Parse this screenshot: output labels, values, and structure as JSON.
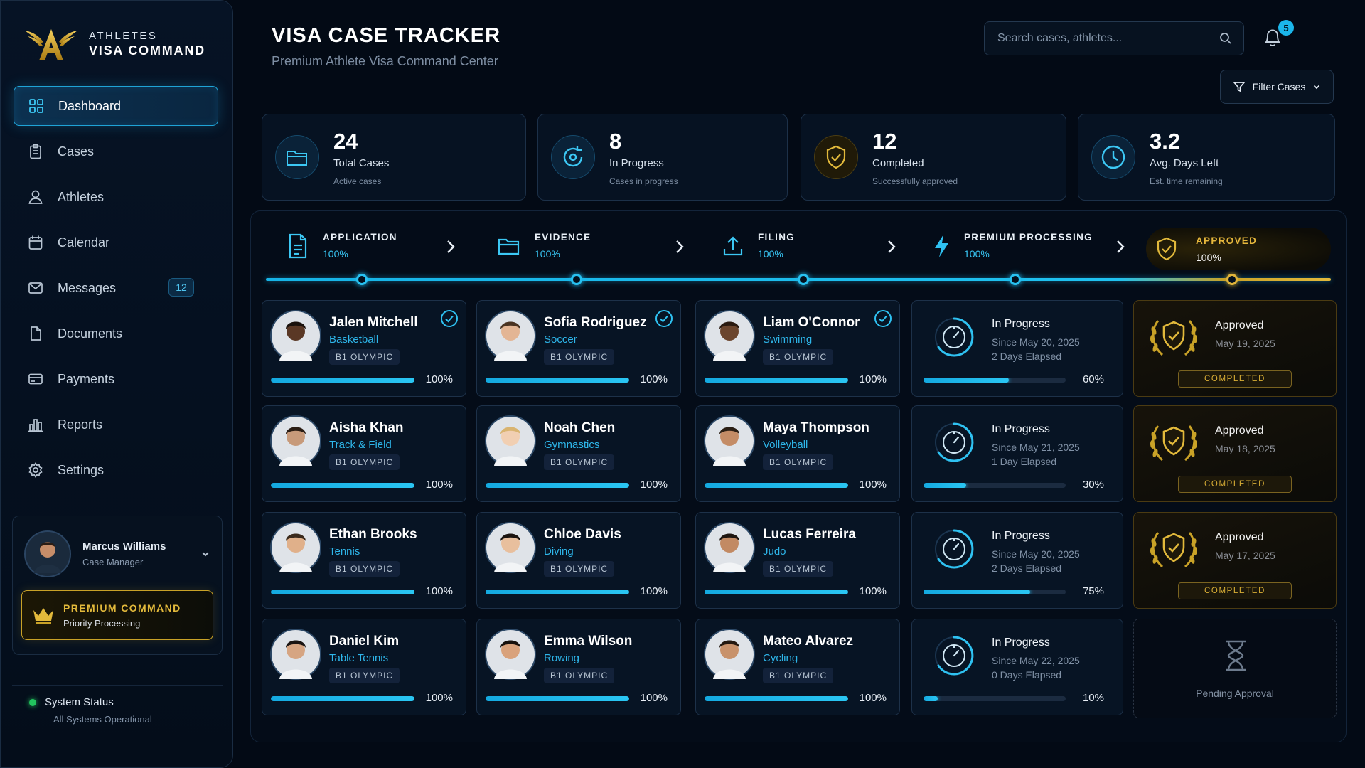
{
  "brand": {
    "line1": "ATHLETES",
    "line2": "VISA COMMAND"
  },
  "nav": [
    {
      "label": "Dashboard",
      "icon": "grid-icon",
      "active": true
    },
    {
      "label": "Cases",
      "icon": "clipboard-icon"
    },
    {
      "label": "Athletes",
      "icon": "user-icon"
    },
    {
      "label": "Calendar",
      "icon": "calendar-icon"
    },
    {
      "label": "Messages",
      "icon": "mail-icon",
      "badge": "12"
    },
    {
      "label": "Documents",
      "icon": "document-icon"
    },
    {
      "label": "Payments",
      "icon": "card-icon"
    },
    {
      "label": "Reports",
      "icon": "bar-chart-icon"
    },
    {
      "label": "Settings",
      "icon": "gear-icon"
    }
  ],
  "user": {
    "name": "Marcus Williams",
    "role": "Case Manager"
  },
  "premium": {
    "title": "PREMIUM COMMAND",
    "subtitle": "Priority Processing"
  },
  "system": {
    "title": "System Status",
    "subtitle": "All Systems Operational"
  },
  "header": {
    "title": "VISA CASE TRACKER",
    "subtitle": "Premium Athlete Visa Command Center",
    "search_placeholder": "Search cases, athletes...",
    "notifications": "5",
    "filter_label": "Filter Cases"
  },
  "stats": [
    {
      "value": "24",
      "label": "Total Cases",
      "sub": "Active cases",
      "icon": "folder-icon"
    },
    {
      "value": "8",
      "label": "In Progress",
      "sub": "Cases in progress",
      "icon": "refresh-icon"
    },
    {
      "value": "12",
      "label": "Completed",
      "sub": "Successfully approved",
      "icon": "shield-check-icon"
    },
    {
      "value": "3.2",
      "label": "Avg. Days Left",
      "sub": "Est. time remaining",
      "icon": "clock-icon"
    }
  ],
  "stages": [
    {
      "name": "APPLICATION",
      "pct": "100%",
      "icon": "document-icon"
    },
    {
      "name": "EVIDENCE",
      "pct": "100%",
      "icon": "folder-icon"
    },
    {
      "name": "FILING",
      "pct": "100%",
      "icon": "upload-icon"
    },
    {
      "name": "PREMIUM PROCESSING",
      "pct": "100%",
      "icon": "bolt-icon"
    },
    {
      "name": "APPROVED",
      "pct": "100%",
      "icon": "shield-check-icon"
    }
  ],
  "columns": [
    [
      {
        "name": "Jalen Mitchell",
        "sport": "Basketball",
        "tag": "B1 OLYMPIC",
        "progress": 100,
        "pct": "100%",
        "checked": true
      },
      {
        "name": "Aisha Khan",
        "sport": "Track & Field",
        "tag": "B1 OLYMPIC",
        "progress": 100,
        "pct": "100%"
      },
      {
        "name": "Ethan Brooks",
        "sport": "Tennis",
        "tag": "B1 OLYMPIC",
        "progress": 100,
        "pct": "100%"
      },
      {
        "name": "Daniel Kim",
        "sport": "Table Tennis",
        "tag": "B1 OLYMPIC",
        "progress": 100,
        "pct": "100%"
      }
    ],
    [
      {
        "name": "Sofia Rodriguez",
        "sport": "Soccer",
        "tag": "B1 OLYMPIC",
        "progress": 100,
        "pct": "100%",
        "checked": true
      },
      {
        "name": "Noah Chen",
        "sport": "Gymnastics",
        "tag": "B1 OLYMPIC",
        "progress": 100,
        "pct": "100%"
      },
      {
        "name": "Chloe Davis",
        "sport": "Diving",
        "tag": "B1 OLYMPIC",
        "progress": 100,
        "pct": "100%"
      },
      {
        "name": "Emma Wilson",
        "sport": "Rowing",
        "tag": "B1 OLYMPIC",
        "progress": 100,
        "pct": "100%"
      }
    ],
    [
      {
        "name": "Liam O'Connor",
        "sport": "Swimming",
        "tag": "B1 OLYMPIC",
        "progress": 100,
        "pct": "100%",
        "checked": true
      },
      {
        "name": "Maya Thompson",
        "sport": "Volleyball",
        "tag": "B1 OLYMPIC",
        "progress": 100,
        "pct": "100%"
      },
      {
        "name": "Lucas Ferreira",
        "sport": "Judo",
        "tag": "B1 OLYMPIC",
        "progress": 100,
        "pct": "100%"
      },
      {
        "name": "Mateo Alvarez",
        "sport": "Cycling",
        "tag": "B1 OLYMPIC",
        "progress": 100,
        "pct": "100%"
      }
    ]
  ],
  "in_progress": [
    {
      "title": "In Progress",
      "since": "Since May 20, 2025",
      "elapsed": "2 Days Elapsed",
      "progress": 60,
      "pct": "60%"
    },
    {
      "title": "In Progress",
      "since": "Since May 21, 2025",
      "elapsed": "1 Day Elapsed",
      "progress": 30,
      "pct": "30%"
    },
    {
      "title": "In Progress",
      "since": "Since May 20, 2025",
      "elapsed": "2 Days Elapsed",
      "progress": 75,
      "pct": "75%"
    },
    {
      "title": "In Progress",
      "since": "Since May 22, 2025",
      "elapsed": "0 Days Elapsed",
      "progress": 10,
      "pct": "10%"
    }
  ],
  "approved": [
    {
      "title": "Approved",
      "date": "May 19, 2025",
      "badge": "COMPLETED"
    },
    {
      "title": "Approved",
      "date": "May 18, 2025",
      "badge": "COMPLETED"
    },
    {
      "title": "Approved",
      "date": "May 17, 2025",
      "badge": "COMPLETED"
    }
  ],
  "pending": {
    "label": "Pending Approval",
    "icon": "hourglass-icon"
  },
  "colors": {
    "accent": "#1fb9ec",
    "gold": "#c9a227",
    "background": "#030a15"
  }
}
